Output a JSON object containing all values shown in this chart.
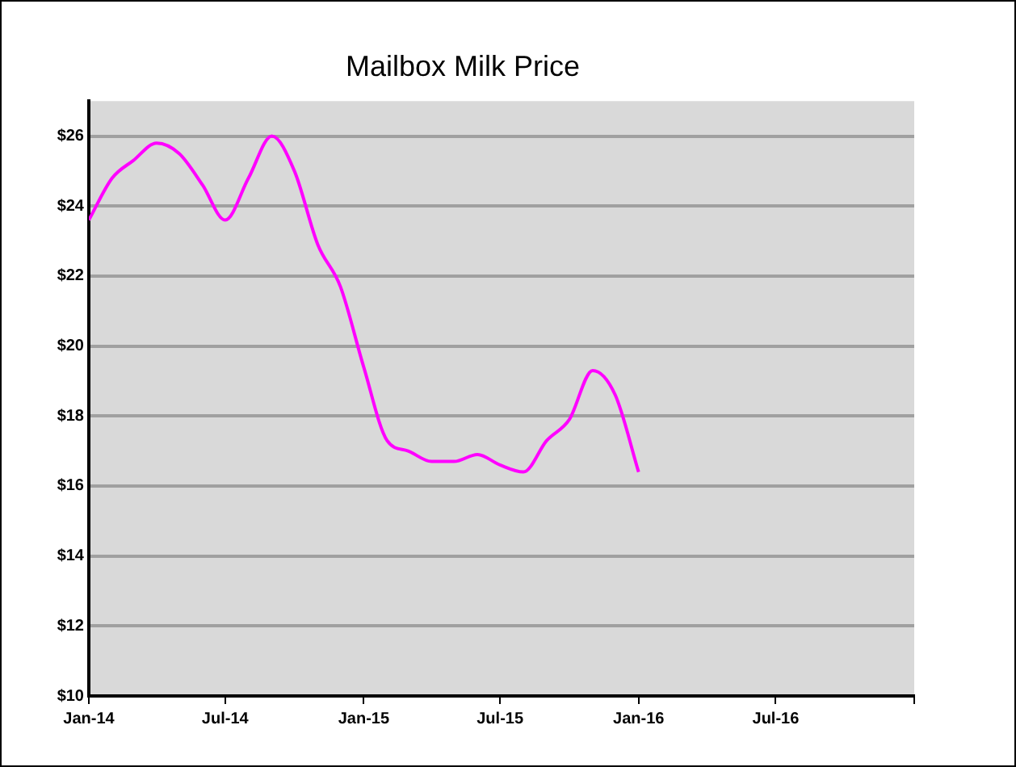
{
  "chart_data": {
    "type": "line",
    "title": "Mailbox Milk Price",
    "x": [
      "2014-01",
      "2014-02",
      "2014-03",
      "2014-04",
      "2014-05",
      "2014-06",
      "2014-07",
      "2014-08",
      "2014-09",
      "2014-10",
      "2014-11",
      "2014-12",
      "2015-01",
      "2015-02",
      "2015-03",
      "2015-04",
      "2015-05",
      "2015-06",
      "2015-07",
      "2015-08",
      "2015-09",
      "2015-10",
      "2015-11",
      "2015-12",
      "2016-01"
    ],
    "series": [
      {
        "color": "#ff00ff",
        "values": [
          23.6,
          24.8,
          25.3,
          25.8,
          25.5,
          24.6,
          23.6,
          24.8,
          26.0,
          25.0,
          22.9,
          21.7,
          19.4,
          17.3,
          17.0,
          16.7,
          16.7,
          16.9,
          16.6,
          16.4,
          17.3,
          17.9,
          19.3,
          18.6,
          16.4
        ]
      }
    ],
    "xlim": [
      "2014-01",
      "2017-01"
    ],
    "xticks": [
      {
        "value": "2014-01",
        "label": "Jan-14"
      },
      {
        "value": "2014-07",
        "label": "Jul-14"
      },
      {
        "value": "2015-01",
        "label": "Jan-15"
      },
      {
        "value": "2015-07",
        "label": "Jul-15"
      },
      {
        "value": "2016-01",
        "label": "Jan-16"
      },
      {
        "value": "2016-07",
        "label": "Jul-16"
      },
      {
        "value": "2017-01",
        "label": null
      }
    ],
    "ylim": [
      10,
      27
    ],
    "yticks": [
      {
        "value": 10,
        "label": "$10"
      },
      {
        "value": 12,
        "label": "$12"
      },
      {
        "value": 14,
        "label": "$14"
      },
      {
        "value": 16,
        "label": "$16"
      },
      {
        "value": 18,
        "label": "$18"
      },
      {
        "value": 20,
        "label": "$20"
      },
      {
        "value": 22,
        "label": "$22"
      },
      {
        "value": 24,
        "label": "$24"
      },
      {
        "value": 26,
        "label": "$26"
      }
    ],
    "grid": "y",
    "legend": false,
    "marker": "none",
    "line_style": "solid"
  }
}
